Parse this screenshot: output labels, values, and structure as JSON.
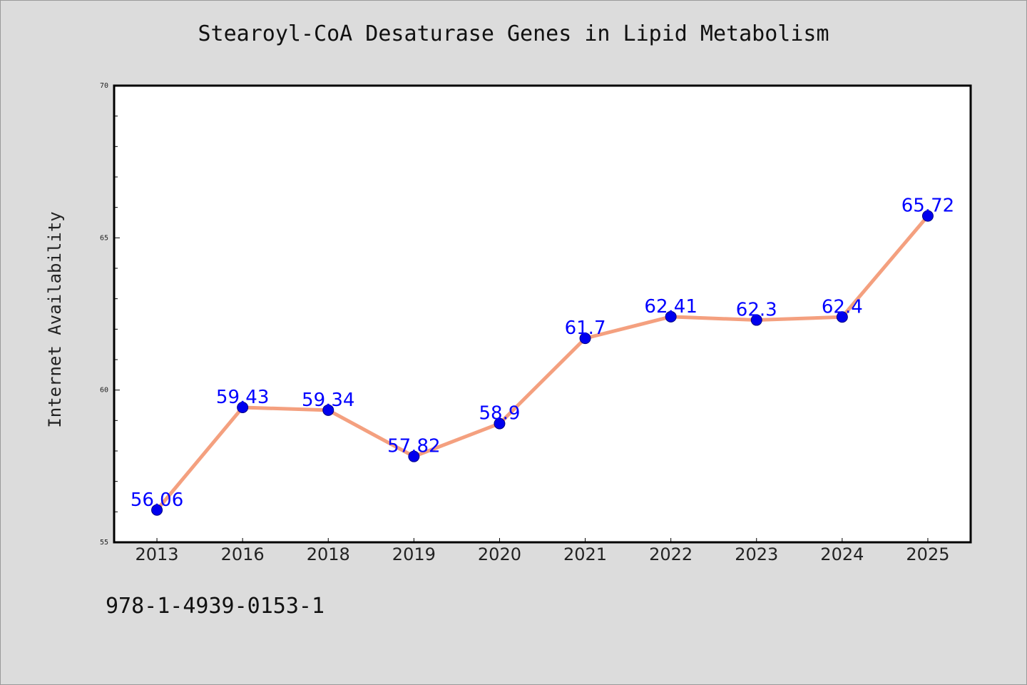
{
  "chart_data": {
    "type": "line",
    "title": "Stearoyl-CoA Desaturase Genes in Lipid Metabolism",
    "xlabel": "",
    "ylabel": "Internet Availability",
    "categories": [
      "2013",
      "2016",
      "2018",
      "2019",
      "2020",
      "2021",
      "2022",
      "2023",
      "2024",
      "2025"
    ],
    "values": [
      56.06,
      59.43,
      59.34,
      57.82,
      58.9,
      61.7,
      62.41,
      62.3,
      62.4,
      65.72
    ],
    "data_labels": [
      "56.06",
      "59.43",
      "59.34",
      "57.82",
      "58.9",
      "61.7",
      "62.41",
      "62.3",
      "62.4",
      "65.72"
    ],
    "ylim": [
      55,
      70
    ],
    "yticks": [
      "55",
      "60",
      "65",
      "70"
    ],
    "grid": false,
    "line_color": "#f4a07f",
    "marker_color": "#0000ee",
    "label_color": "#0000ff"
  },
  "footer": {
    "code": "978-1-4939-0153-1"
  }
}
